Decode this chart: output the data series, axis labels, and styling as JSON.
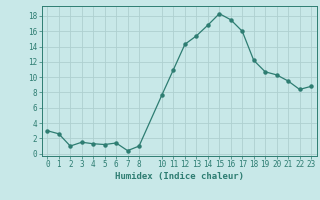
{
  "x": [
    0,
    1,
    2,
    3,
    4,
    5,
    6,
    7,
    8,
    10,
    11,
    12,
    13,
    14,
    15,
    16,
    17,
    18,
    19,
    20,
    21,
    22,
    23
  ],
  "y": [
    3.0,
    2.6,
    1.0,
    1.5,
    1.3,
    1.2,
    1.4,
    0.4,
    1.0,
    7.7,
    11.0,
    14.3,
    15.4,
    16.8,
    18.3,
    17.5,
    16.0,
    12.2,
    10.7,
    10.3,
    9.5,
    8.4,
    8.8
  ],
  "line_color": "#2e7d72",
  "bg_color": "#c8e8e8",
  "grid_color": "#aed0d0",
  "xlabel": "Humidex (Indice chaleur)",
  "xticks": [
    0,
    1,
    2,
    3,
    4,
    5,
    6,
    7,
    8,
    10,
    11,
    12,
    13,
    14,
    15,
    16,
    17,
    18,
    19,
    20,
    21,
    22,
    23
  ],
  "yticks": [
    0,
    2,
    4,
    6,
    8,
    10,
    12,
    14,
    16,
    18
  ],
  "xlim": [
    -0.5,
    23.5
  ],
  "ylim": [
    -0.3,
    19.3
  ],
  "tick_color": "#2e7d72",
  "label_fontsize": 6.5,
  "tick_fontsize": 5.5,
  "lw": 0.9,
  "markersize": 2.2
}
